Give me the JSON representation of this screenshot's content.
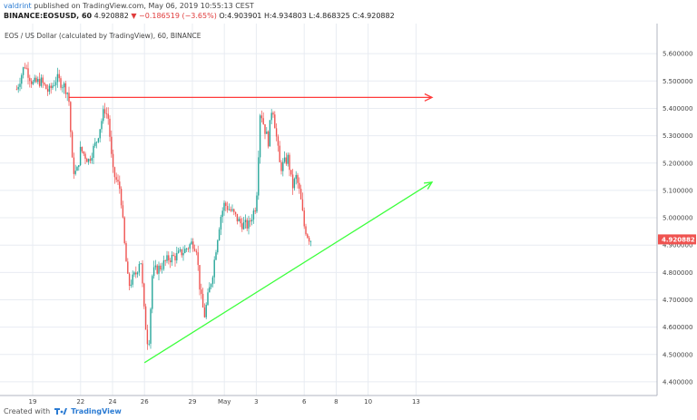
{
  "header": {
    "author": "valdrint",
    "published": "published on TradingView.com, May 06, 2019 10:55:13 CEST",
    "symbol": "BINANCE:EOSUSD, 60",
    "ohlc_prefix": "4.920882",
    "change": "▼ −0.186519 (−3.65%)",
    "ohlc_rest": "O:4.903901 H:4.934803 L:4.868325 C:4.920882"
  },
  "chart_title": "EOS / US Dollar (calculated by TradingView), 60, BINANCE",
  "footer": {
    "created_with": "Created with",
    "brand": "TradingView"
  },
  "colors": {
    "up": "#26a69a",
    "down": "#ef5350",
    "resistance": "#ff3b3b",
    "support": "#3cff3c",
    "grid": "#e8ecf2",
    "price_tag": "#ef5350"
  },
  "chart_data": {
    "type": "candlestick",
    "title": "EOS / US Dollar (calculated by TradingView), 60, BINANCE",
    "interval": "60",
    "x_tick_labels": [
      "19",
      "22",
      "24",
      "26",
      "29",
      "May",
      "3",
      "6",
      "8",
      "10",
      "13"
    ],
    "y_tick_labels": [
      "5.600000",
      "5.500000",
      "5.400000",
      "5.300000",
      "5.200000",
      "5.100000",
      "5.000000",
      "4.900000",
      "4.800000",
      "4.700000",
      "4.600000",
      "4.500000",
      "4.400000"
    ],
    "ylim": [
      4.35,
      5.71
    ],
    "last_price": "4.920882",
    "price_path": [
      {
        "x": "Apr 18 00:00",
        "y": 5.47
      },
      {
        "x": "Apr 18 12:00",
        "y": 5.56
      },
      {
        "x": "Apr 19 00:00",
        "y": 5.49
      },
      {
        "x": "Apr 19 12:00",
        "y": 5.5
      },
      {
        "x": "Apr 20 00:00",
        "y": 5.46
      },
      {
        "x": "Apr 20 12:00",
        "y": 5.51
      },
      {
        "x": "Apr 21 00:00",
        "y": 5.48
      },
      {
        "x": "Apr 21 06:00",
        "y": 5.45
      },
      {
        "x": "Apr 21 12:00",
        "y": 5.18
      },
      {
        "x": "Apr 21 18:00",
        "y": 5.16
      },
      {
        "x": "Apr 22 00:00",
        "y": 5.25
      },
      {
        "x": "Apr 22 12:00",
        "y": 5.21
      },
      {
        "x": "Apr 23 00:00",
        "y": 5.28
      },
      {
        "x": "Apr 23 06:00",
        "y": 5.34
      },
      {
        "x": "Apr 23 12:00",
        "y": 5.4
      },
      {
        "x": "Apr 23 18:00",
        "y": 5.36
      },
      {
        "x": "Apr 24 00:00",
        "y": 5.17
      },
      {
        "x": "Apr 24 12:00",
        "y": 5.1
      },
      {
        "x": "Apr 24 18:00",
        "y": 4.9
      },
      {
        "x": "Apr 25 00:00",
        "y": 4.75
      },
      {
        "x": "Apr 25 12:00",
        "y": 4.8
      },
      {
        "x": "Apr 25 18:00",
        "y": 4.86
      },
      {
        "x": "Apr 26 00:00",
        "y": 4.64
      },
      {
        "x": "Apr 26 06:00",
        "y": 4.52
      },
      {
        "x": "Apr 26 12:00",
        "y": 4.8
      },
      {
        "x": "Apr 27 00:00",
        "y": 4.82
      },
      {
        "x": "Apr 27 12:00",
        "y": 4.85
      },
      {
        "x": "Apr 28 00:00",
        "y": 4.86
      },
      {
        "x": "Apr 28 12:00",
        "y": 4.88
      },
      {
        "x": "Apr 29 00:00",
        "y": 4.91
      },
      {
        "x": "Apr 29 06:00",
        "y": 4.89
      },
      {
        "x": "Apr 29 12:00",
        "y": 4.72
      },
      {
        "x": "Apr 29 18:00",
        "y": 4.64
      },
      {
        "x": "Apr 30 00:00",
        "y": 4.72
      },
      {
        "x": "Apr 30 06:00",
        "y": 4.79
      },
      {
        "x": "Apr 30 12:00",
        "y": 4.9
      },
      {
        "x": "Apr 30 18:00",
        "y": 5.0
      },
      {
        "x": "May 1 00:00",
        "y": 5.05
      },
      {
        "x": "May 1 12:00",
        "y": 5.02
      },
      {
        "x": "May 2 00:00",
        "y": 4.98
      },
      {
        "x": "May 2 12:00",
        "y": 4.97
      },
      {
        "x": "May 3 00:00",
        "y": 5.05
      },
      {
        "x": "May 3 06:00",
        "y": 5.4
      },
      {
        "x": "May 3 12:00",
        "y": 5.33
      },
      {
        "x": "May 3 18:00",
        "y": 5.28
      },
      {
        "x": "May 4 00:00",
        "y": 5.42
      },
      {
        "x": "May 4 06:00",
        "y": 5.3
      },
      {
        "x": "May 4 12:00",
        "y": 5.18
      },
      {
        "x": "May 5 00:00",
        "y": 5.22
      },
      {
        "x": "May 5 06:00",
        "y": 5.11
      },
      {
        "x": "May 5 12:00",
        "y": 5.15
      },
      {
        "x": "May 5 18:00",
        "y": 5.08
      },
      {
        "x": "May 6 00:00",
        "y": 4.97
      },
      {
        "x": "May 6 06:00",
        "y": 4.93
      },
      {
        "x": "May 6 10:00",
        "y": 4.92
      }
    ],
    "annotations": [
      {
        "type": "horizontal-arrow",
        "color": "red",
        "start": {
          "x": "Apr 21 06:00",
          "y": 5.44
        },
        "end": {
          "x": "May 14 00:00",
          "y": 5.44
        }
      },
      {
        "type": "arrow",
        "color": "green",
        "start": {
          "x": "Apr 26 00:00",
          "y": 4.47
        },
        "end": {
          "x": "May 14 00:00",
          "y": 5.13
        }
      }
    ]
  }
}
